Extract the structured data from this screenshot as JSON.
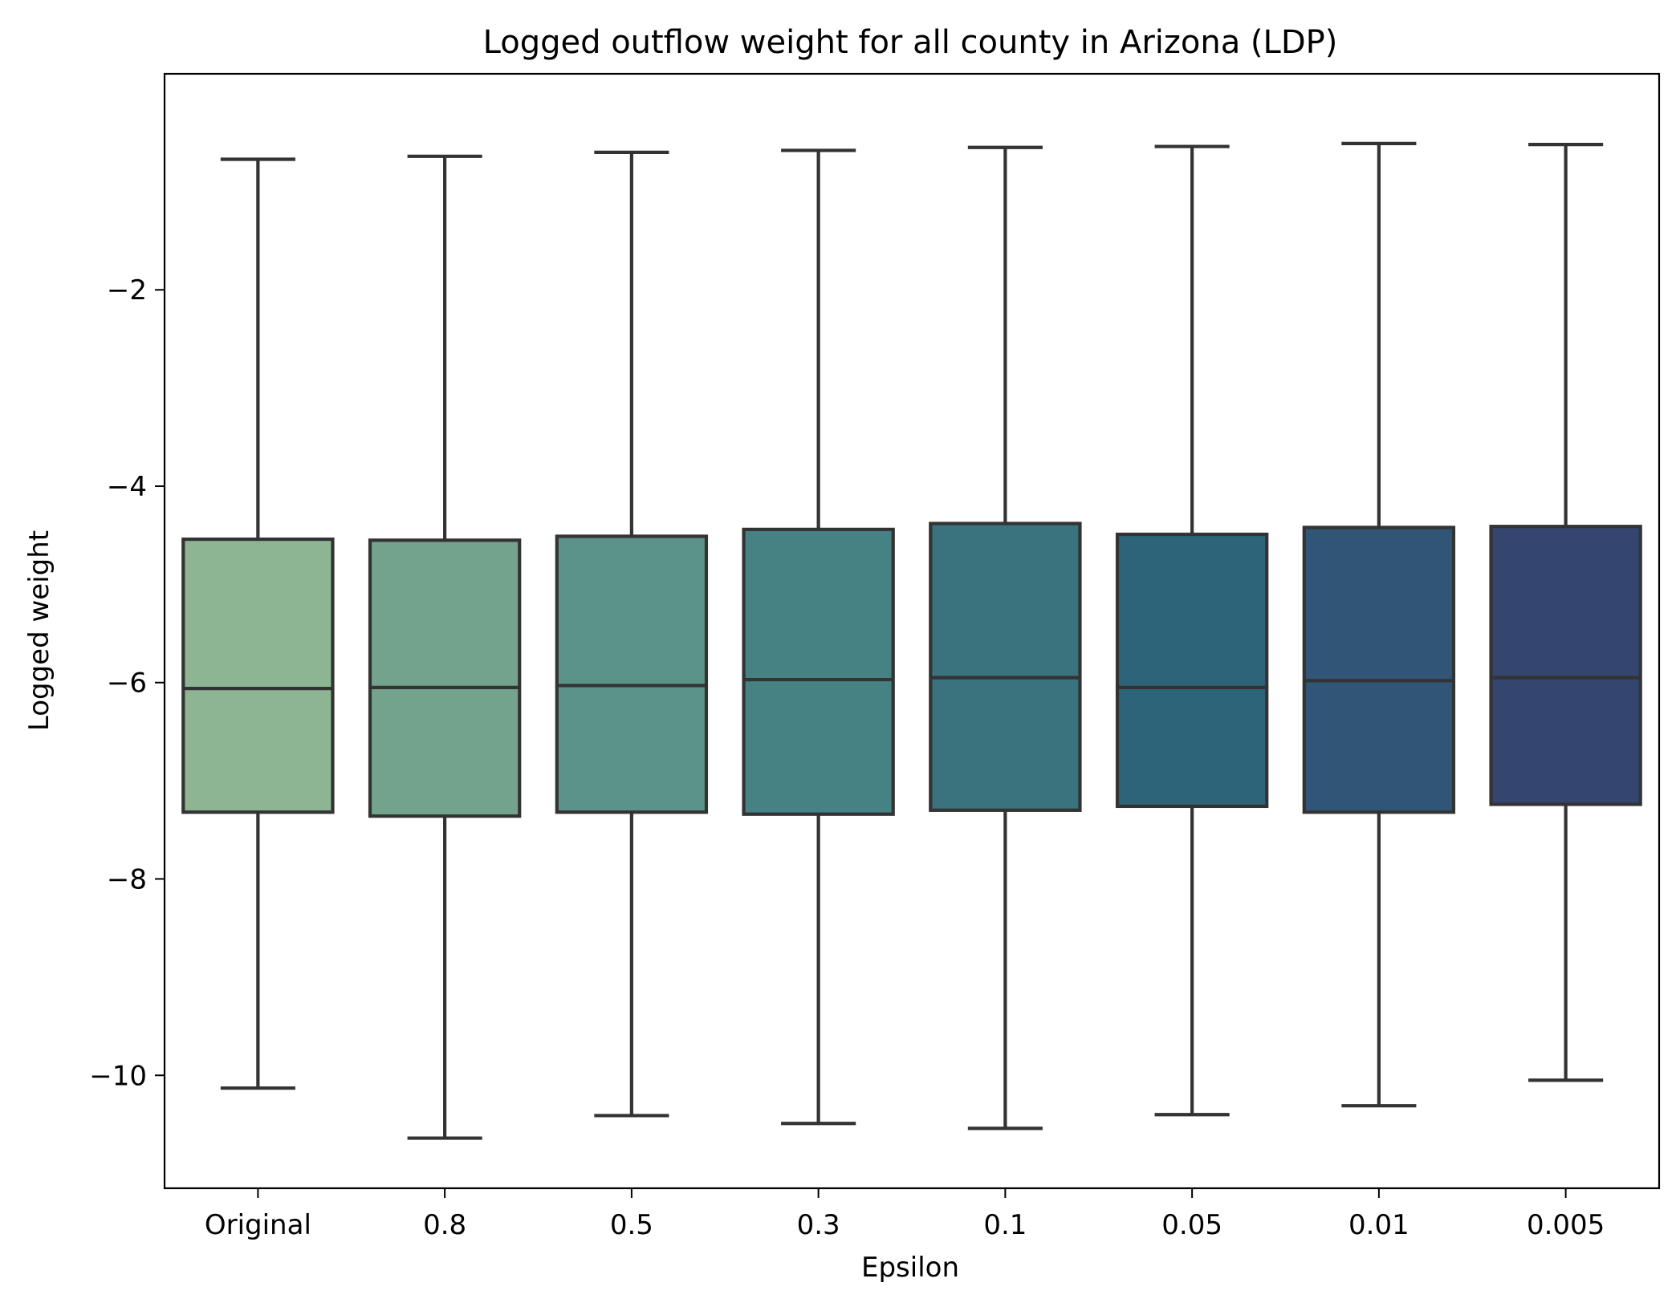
{
  "chart_data": {
    "type": "box",
    "title": "Logged outflow weight for all county in Arizona (LDP)",
    "xlabel": "Epsilon",
    "ylabel": "Logged weight",
    "categories": [
      "Original",
      "0.8",
      "0.5",
      "0.3",
      "0.1",
      "0.05",
      "0.01",
      "0.005"
    ],
    "yticks": [
      -2,
      -4,
      -6,
      -8,
      -10
    ],
    "ytick_labels": [
      "−2",
      "−4",
      "−6",
      "−8",
      "−10"
    ],
    "ylim": [
      -11.15,
      0.2
    ],
    "grid": false,
    "legend": null,
    "box_edge_color": "#333333",
    "series": [
      {
        "category": "Original",
        "whislo": -10.13,
        "q1": -7.32,
        "median": -6.06,
        "q3": -4.54,
        "whishi": -0.67,
        "color": "#8db593"
      },
      {
        "category": "0.8",
        "whislo": -10.64,
        "q1": -7.36,
        "median": -6.05,
        "q3": -4.55,
        "whishi": -0.64,
        "color": "#73a38d"
      },
      {
        "category": "0.5",
        "whislo": -10.41,
        "q1": -7.32,
        "median": -6.03,
        "q3": -4.51,
        "whishi": -0.6,
        "color": "#5b9388"
      },
      {
        "category": "0.3",
        "whislo": -10.49,
        "q1": -7.34,
        "median": -5.97,
        "q3": -4.44,
        "whishi": -0.58,
        "color": "#468183"
      },
      {
        "category": "0.1",
        "whislo": -10.54,
        "q1": -7.3,
        "median": -5.95,
        "q3": -4.38,
        "whishi": -0.55,
        "color": "#3a727e"
      },
      {
        "category": "0.05",
        "whislo": -10.4,
        "q1": -7.26,
        "median": -6.05,
        "q3": -4.49,
        "whishi": -0.54,
        "color": "#2d6479"
      },
      {
        "category": "0.01",
        "whislo": -10.31,
        "q1": -7.32,
        "median": -5.98,
        "q3": -4.42,
        "whishi": -0.51,
        "color": "#305576"
      },
      {
        "category": "0.005",
        "whislo": -10.05,
        "q1": -7.24,
        "median": -5.95,
        "q3": -4.41,
        "whishi": -0.52,
        "color": "#34466f"
      }
    ]
  }
}
